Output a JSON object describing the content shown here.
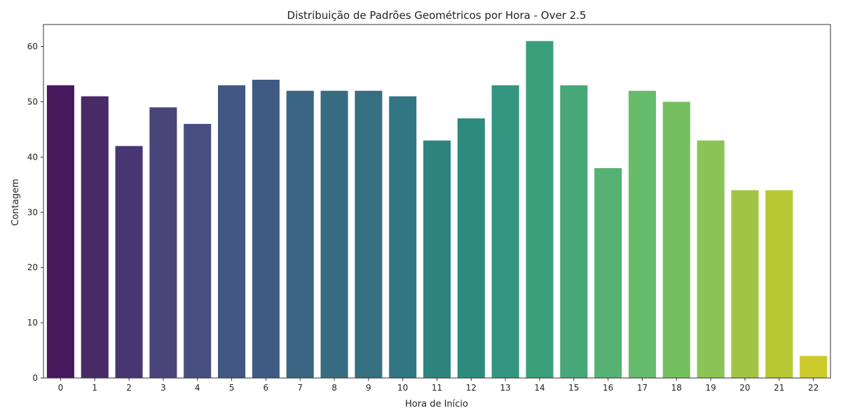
{
  "chart_data": {
    "type": "bar",
    "title": "Distribuição de Padrões Geométricos por Hora - Over 2.5",
    "xlabel": "Hora de Início",
    "ylabel": "Contagem",
    "categories": [
      "0",
      "1",
      "2",
      "3",
      "4",
      "5",
      "6",
      "7",
      "8",
      "9",
      "10",
      "11",
      "12",
      "13",
      "14",
      "15",
      "16",
      "17",
      "18",
      "19",
      "20",
      "21",
      "22"
    ],
    "values": [
      53,
      51,
      42,
      49,
      46,
      53,
      54,
      52,
      52,
      52,
      51,
      43,
      47,
      53,
      61,
      53,
      38,
      52,
      50,
      43,
      34,
      34,
      4
    ],
    "ylim": [
      0,
      64
    ],
    "yticks": [
      0,
      10,
      20,
      30,
      40,
      50,
      60
    ],
    "grid": false,
    "colors": [
      "#45195b",
      "#482a66",
      "#483672",
      "#494579",
      "#474f80",
      "#435784",
      "#3f5b84",
      "#3a6683",
      "#376c80",
      "#356f80",
      "#317682",
      "#2f857d",
      "#2e8a7c",
      "#339680",
      "#3a9e7b",
      "#47a778",
      "#56b272",
      "#67bb6d",
      "#75bf60",
      "#8ac456",
      "#a2c444",
      "#b6c934",
      "#cbcc2b"
    ]
  }
}
